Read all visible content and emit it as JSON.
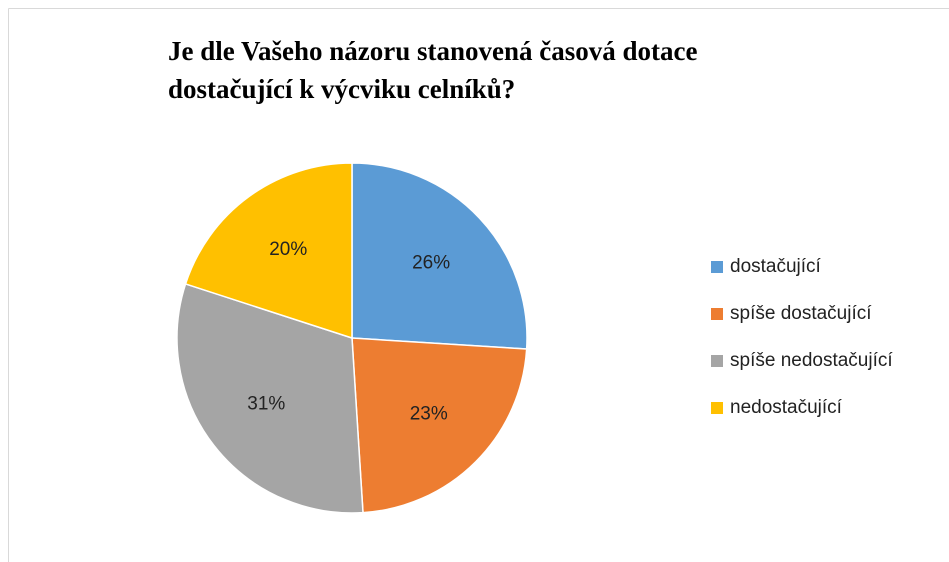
{
  "chart_data": {
    "type": "pie",
    "title": "Je dle Vašeho názoru stanovená časová dotace dostačující k výcviku celníků?",
    "categories": [
      "dostačující",
      "spíše dostačující",
      "spíše nedostačující",
      "nedostačující"
    ],
    "values": [
      26,
      23,
      31,
      20
    ],
    "value_labels": [
      "26%",
      "23%",
      "31%",
      "20%"
    ],
    "colors": [
      "#5b9bd5",
      "#ed7d31",
      "#a5a5a5",
      "#ffc000"
    ],
    "legend": "right"
  }
}
